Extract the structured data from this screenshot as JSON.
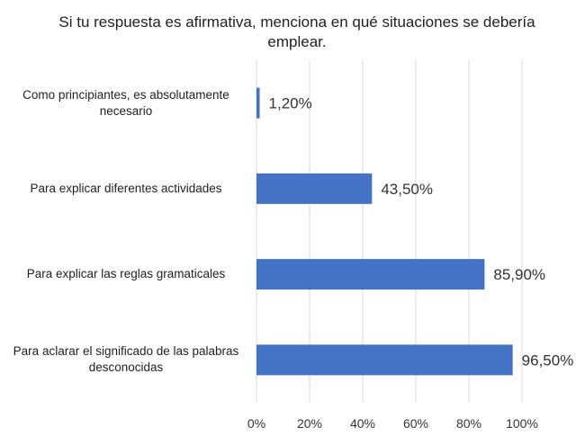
{
  "chart_data": {
    "type": "bar",
    "orientation": "horizontal",
    "title": "Si tu respuesta es afirmativa, menciona en qué situaciones se debería emplear.",
    "categories": [
      "Como principiantes, es absolutamente necesario",
      "Para explicar diferentes actividades",
      "Para explicar las reglas gramaticales",
      "Para aclarar el significado de las palabras desconocidas"
    ],
    "values": [
      1.2,
      43.5,
      85.9,
      96.5
    ],
    "data_labels": [
      "1,20%",
      "43,50%",
      "85,90%",
      "96,50%"
    ],
    "xlim": [
      0,
      100
    ],
    "x_ticks": [
      "0%",
      "20%",
      "40%",
      "60%",
      "80%",
      "100%"
    ],
    "grid": "vertical",
    "legend": "none",
    "bar_color": "#4472C4",
    "grid_color": "#D9D9D9"
  }
}
